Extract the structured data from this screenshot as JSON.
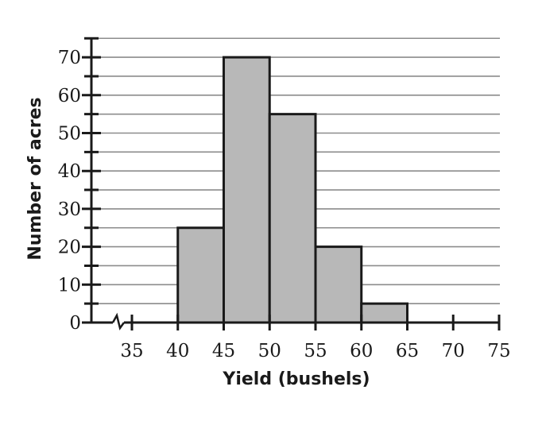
{
  "chart_data": {
    "type": "bar",
    "histogram": true,
    "bins": [
      {
        "start": 40,
        "end": 45,
        "count": 25
      },
      {
        "start": 45,
        "end": 50,
        "count": 70
      },
      {
        "start": 50,
        "end": 55,
        "count": 55
      },
      {
        "start": 55,
        "end": 60,
        "count": 20
      },
      {
        "start": 60,
        "end": 65,
        "count": 5
      }
    ],
    "title": "",
    "xlabel": "Yield (bushels)",
    "ylabel": "Number of acres",
    "xticks": [
      35,
      40,
      45,
      50,
      55,
      60,
      65,
      70,
      75
    ],
    "yticks": [
      0,
      10,
      20,
      30,
      40,
      50,
      60,
      70
    ],
    "xlim": [
      35,
      75
    ],
    "ylim": [
      0,
      75
    ],
    "x_axis_break": true,
    "grid": "horizontal every 5",
    "colors": {
      "bar_fill": "#b8b8b8",
      "bar_stroke": "#1a1a1a",
      "grid": "#8c8c8c",
      "axis": "#1a1a1a"
    }
  }
}
